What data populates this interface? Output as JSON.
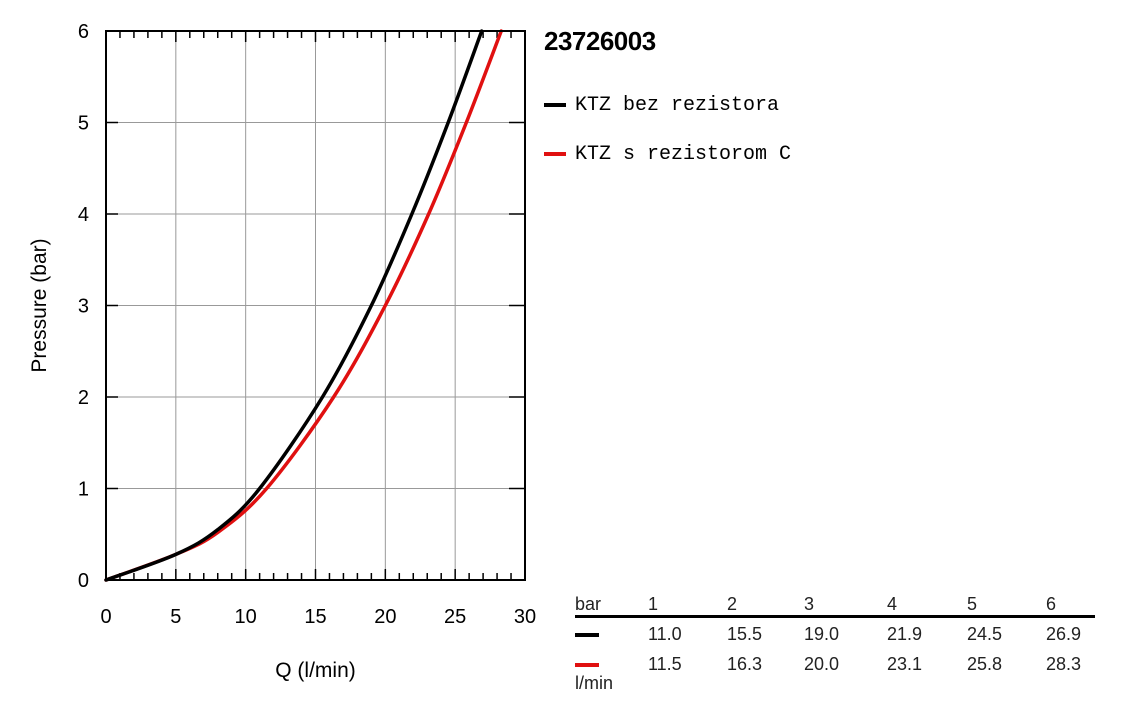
{
  "chart_data": {
    "type": "line",
    "title": "23726003",
    "xlabel": "Q (l/min)",
    "ylabel": "Pressure (bar)",
    "xlim": [
      0,
      30
    ],
    "ylim": [
      0,
      6
    ],
    "xticks": [
      0,
      5,
      10,
      15,
      20,
      25,
      30
    ],
    "yticks": [
      0,
      1,
      2,
      3,
      4,
      5,
      6
    ],
    "grid": true,
    "legend_position": "right",
    "series": [
      {
        "name": "KTZ bez rezistora",
        "color": "#000000",
        "x": [
          0,
          5,
          8,
          11.0,
          15.5,
          19.0,
          21.9,
          24.5,
          26.9
        ],
        "y": [
          0,
          0.28,
          0.55,
          1,
          2,
          3,
          4,
          5,
          6
        ]
      },
      {
        "name": "KTZ s rezistorom C",
        "color": "#e01010",
        "x": [
          0,
          5,
          8,
          11.5,
          16.3,
          20.0,
          23.1,
          25.8,
          28.3
        ],
        "y": [
          0,
          0.28,
          0.52,
          1,
          2,
          3,
          4,
          5,
          6
        ]
      }
    ]
  },
  "table": {
    "header_label": "bar",
    "columns": [
      "1",
      "2",
      "3",
      "4",
      "5",
      "6"
    ],
    "rows": [
      {
        "color": "#000000",
        "values": [
          "11.0",
          "15.5",
          "19.0",
          "21.9",
          "24.5",
          "26.9"
        ]
      },
      {
        "color": "#e01010",
        "values": [
          "11.5",
          "16.3",
          "20.0",
          "23.1",
          "25.8",
          "28.3"
        ]
      }
    ],
    "unit_label": "l/min"
  }
}
